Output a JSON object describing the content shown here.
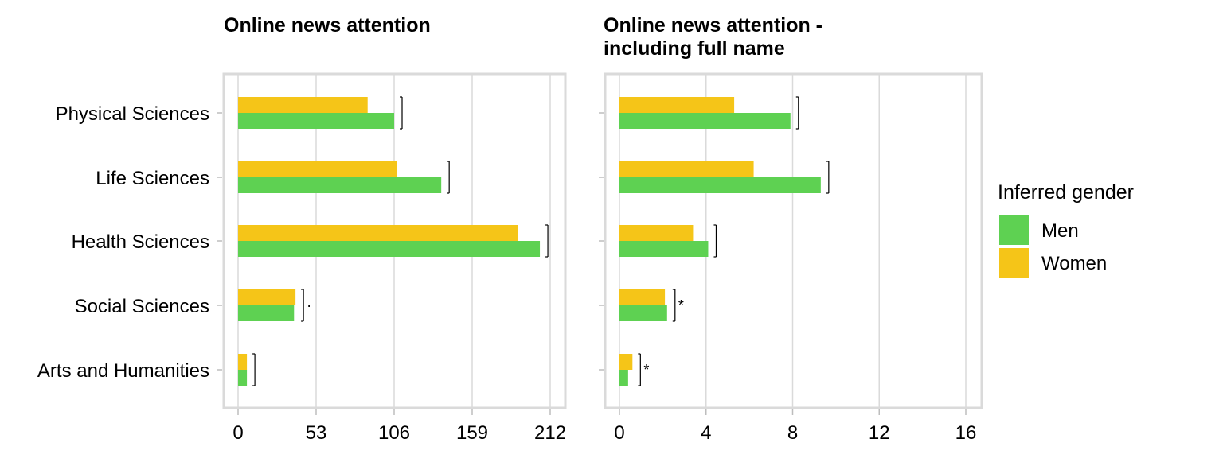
{
  "chart_data": {
    "type": "bar",
    "orientation": "horizontal",
    "categories": [
      "Physical Sciences",
      "Life Sciences",
      "Health Sciences",
      "Social Sciences",
      "Arts and Humanities"
    ],
    "legend": {
      "title": "Inferred gender",
      "entries": [
        {
          "name": "Men",
          "color": "#5ed152"
        },
        {
          "name": "Women",
          "color": "#f5c518"
        }
      ],
      "placement": "right"
    },
    "grid": true,
    "panels": [
      {
        "title": "Online news attention",
        "xlim": [
          0,
          212
        ],
        "ticks": [
          "0",
          "53",
          "106",
          "159",
          "212"
        ],
        "tick_values": [
          0,
          53,
          106,
          159,
          212
        ],
        "series": [
          {
            "name": "Men",
            "values": [
              106,
              138,
              205,
              38,
              6
            ]
          },
          {
            "name": "Women",
            "values": [
              88,
              108,
              190,
              39,
              6
            ]
          }
        ],
        "significance": [
          "",
          "",
          "",
          "·",
          ""
        ]
      },
      {
        "title": "Online news attention -\nincluding full name",
        "title_lines": [
          "Online news attention -",
          "including full name"
        ],
        "xlim": [
          0,
          16
        ],
        "ticks": [
          "0",
          "4",
          "8",
          "12",
          "16"
        ],
        "tick_values": [
          0,
          4,
          8,
          12,
          16
        ],
        "series": [
          {
            "name": "Men",
            "values": [
              7.9,
              9.3,
              4.1,
              2.2,
              0.4
            ]
          },
          {
            "name": "Women",
            "values": [
              5.3,
              6.2,
              3.4,
              2.1,
              0.6
            ]
          }
        ],
        "significance": [
          "",
          "",
          "",
          "*",
          "*"
        ]
      }
    ]
  }
}
